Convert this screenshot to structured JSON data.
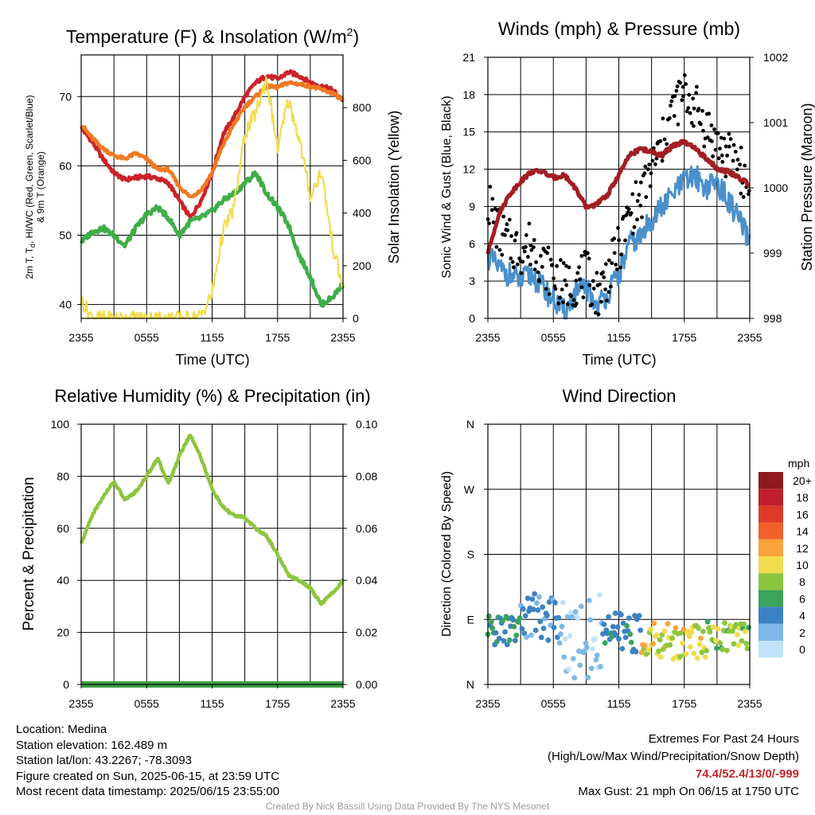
{
  "chart_data": [
    {
      "type": "line",
      "title": "Temperature (F) & Insolation (W/m",
      "title_sup": "2",
      "title_end": ")",
      "xlabel": "Time (UTC)",
      "ylabel_line1": "2m T, T",
      "ylabel_sub": "d",
      "ylabel_line1_end": ", HI/WC (Red, Green, Scarlet/Blue)",
      "ylabel_line2": "& 9m T (Orange)",
      "ylabel_right": "Solar Insolation (Yellow)",
      "x_ticks": [
        "2355",
        "0555",
        "1155",
        "1755",
        "2355"
      ],
      "y_ticks": [
        "40",
        "50",
        "60",
        "70"
      ],
      "ylim": [
        38,
        76
      ],
      "y_right_ticks": [
        "0",
        "200",
        "400",
        "600",
        "800"
      ],
      "y_right_lim": [
        0,
        1000
      ],
      "x": [
        0,
        1,
        2,
        3,
        4,
        5,
        6,
        7,
        8,
        9,
        10,
        11,
        12,
        13,
        14,
        15,
        16,
        17,
        18,
        19,
        20,
        21,
        22,
        23,
        24
      ],
      "series": [
        {
          "color": "#cc2229",
          "axis": "left",
          "values": [
            65.5,
            63.5,
            61,
            59,
            58,
            58.3,
            58.5,
            58.2,
            57.5,
            55,
            52.5,
            55,
            59,
            64.5,
            67,
            70,
            72,
            73,
            72.5,
            73.5,
            73,
            72,
            71.5,
            71,
            69.5
          ]
        },
        {
          "color": "#f07a23",
          "axis": "left",
          "values": [
            66,
            64,
            62.5,
            61.5,
            61,
            61.8,
            61,
            59.5,
            59.5,
            57,
            55.5,
            56.5,
            59,
            63,
            66,
            68.5,
            70,
            71.5,
            71.3,
            72,
            71.8,
            71.5,
            71,
            70.5,
            69.5
          ]
        },
        {
          "color": "#3eae49",
          "axis": "left",
          "values": [
            49,
            50.5,
            51,
            50,
            48.5,
            51,
            53,
            54,
            52.5,
            50,
            52,
            52.5,
            53.5,
            55,
            56,
            57.5,
            59,
            56,
            54,
            51.5,
            47,
            44,
            40,
            41,
            43
          ]
        },
        {
          "color": "#f2dc4c",
          "axis": "right",
          "values": [
            70,
            2,
            0,
            0,
            0,
            0,
            0,
            0,
            0,
            0,
            0,
            10,
            95,
            330,
            420,
            700,
            780,
            910,
            640,
            830,
            680,
            460,
            560,
            290,
            110
          ]
        }
      ]
    },
    {
      "type": "scatter",
      "title": "Winds (mph) & Pressure (mb)",
      "xlabel": "Time (UTC)",
      "ylabel": "Sonic Wind & Gust (Blue, Black)",
      "ylabel_right": "Station Pressure (Maroon)",
      "x_ticks": [
        "2355",
        "0555",
        "1155",
        "1755",
        "2355"
      ],
      "y_ticks": [
        "0",
        "3",
        "6",
        "9",
        "12",
        "15",
        "18",
        "21"
      ],
      "ylim": [
        0,
        21
      ],
      "y_right_ticks": [
        "998",
        "999",
        "1000",
        "1001",
        "1002"
      ],
      "y_right_lim": [
        998,
        1002
      ],
      "x": [
        0,
        1,
        2,
        3,
        4,
        5,
        6,
        7,
        8,
        9,
        10,
        11,
        12,
        13,
        14,
        15,
        16,
        17,
        18,
        19,
        20,
        21,
        22,
        23,
        24
      ],
      "series": [
        {
          "color": "#4a90cc",
          "kind": "line",
          "values": [
            5,
            4,
            3.5,
            3,
            3.5,
            2.5,
            1.5,
            0.5,
            2,
            2.5,
            1,
            2,
            3.5,
            6,
            6.5,
            8,
            9,
            10,
            11,
            11.5,
            10.5,
            11,
            9.5,
            8,
            6
          ]
        },
        {
          "color": "#000000",
          "kind": "scatter",
          "values": [
            9.5,
            7,
            6,
            5.5,
            6,
            4.5,
            3.5,
            2.5,
            3,
            3.5,
            2,
            3.5,
            5.5,
            8.5,
            9.5,
            12,
            14,
            17,
            18,
            17,
            15.5,
            14,
            13,
            12.5,
            10
          ]
        },
        {
          "color": "#a31e22",
          "kind": "line",
          "axis": "right",
          "values": [
            999,
            999.6,
            999.9,
            1000.1,
            1000.25,
            1000.25,
            1000.15,
            1000.2,
            1000.0,
            999.7,
            999.75,
            999.9,
            1000.2,
            1000.5,
            1000.6,
            1000.55,
            1000.5,
            1000.65,
            1000.7,
            1000.6,
            1000.45,
            1000.3,
            1000.25,
            1000.15,
            1000.05
          ]
        }
      ]
    },
    {
      "type": "line",
      "title": "Relative Humidity (%) & Precipitation (in)",
      "ylabel": "Percent & Precipitation",
      "x_ticks": [
        "2355",
        "0555",
        "1155",
        "1755",
        "2355"
      ],
      "y_ticks": [
        "0",
        "20",
        "40",
        "60",
        "80",
        "100"
      ],
      "ylim": [
        0,
        100
      ],
      "y_right_ticks": [
        "0.00",
        "0.02",
        "0.04",
        "0.06",
        "0.08",
        "0.10"
      ],
      "y_right_lim": [
        0,
        0.1
      ],
      "x": [
        0,
        1,
        2,
        3,
        4,
        5,
        6,
        7,
        8,
        9,
        10,
        11,
        12,
        13,
        14,
        15,
        16,
        17,
        18,
        19,
        20,
        21,
        22,
        23,
        24
      ],
      "series": [
        {
          "color": "#8dc63f",
          "values": [
            54,
            65,
            72,
            78,
            71,
            74,
            80,
            87,
            77,
            88,
            96,
            87,
            75,
            68,
            65,
            64,
            60,
            57,
            50,
            42,
            40,
            37,
            31,
            35,
            40
          ]
        },
        {
          "color": "#3e9e45",
          "values": [
            0,
            0,
            0,
            0,
            0,
            0,
            0,
            0,
            0,
            0,
            0,
            0,
            0,
            0,
            0,
            0,
            0,
            0,
            0,
            0,
            0,
            0,
            0,
            0,
            0
          ]
        }
      ]
    },
    {
      "type": "scatter",
      "title": "Wind Direction",
      "ylabel": "Direction (Colored By Speed)",
      "x_ticks": [
        "2355",
        "0555",
        "1155",
        "1755",
        "2355"
      ],
      "y_ticks": [
        "N",
        "E",
        "S",
        "W",
        "N"
      ],
      "ylim": [
        0,
        360
      ],
      "legend_title": "mph",
      "legend_labels": [
        "20+",
        "18",
        "16",
        "14",
        "12",
        "10",
        "8",
        "6",
        "4",
        "2",
        "0"
      ],
      "legend_colors": [
        "#8c1a1f",
        "#be1e2d",
        "#dc3b2a",
        "#f1612c",
        "#f9a43a",
        "#f0dc4e",
        "#8cc63f",
        "#3aa35c",
        "#3b82c4",
        "#7fb8e6",
        "#c2e3f7"
      ]
    }
  ],
  "footer": {
    "location": "Location: Medina",
    "elevation": "Station elevation: 162.489 m",
    "latlon": "Station lat/lon: 43.2267; -78.3093",
    "created": "Figure created on Sun, 2025-06-15, at 23:59 UTC",
    "recent": "Most recent data timestamp: 2025/06/15 23:55:00",
    "extremes_title": "Extremes For Past 24 Hours",
    "extremes_desc": "(High/Low/Max Wind/Precipitation/Snow Depth)",
    "extremes_values": "74.4/52.4/13/0/-999",
    "max_gust": "Max Gust: 21 mph On 06/15 at 1750 UTC",
    "credit": "Created By Nick Bassill Using Data Provided By The NYS Mesonet"
  }
}
